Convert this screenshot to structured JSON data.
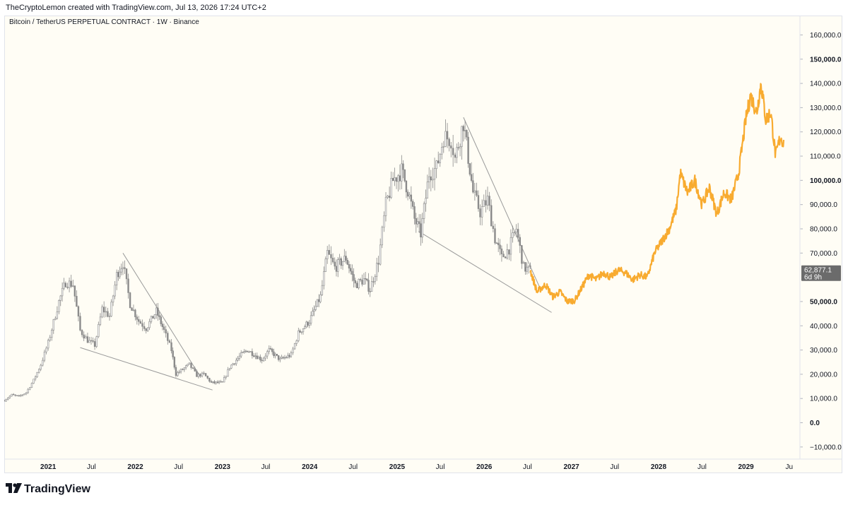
{
  "header": {
    "attribution": "TheCryptoLemon created with TradingView.com, Jul 13, 2026 17:24 UTC+2"
  },
  "symbol": {
    "line": "Bitcoin / TetherUS PERPETUAL CONTRACT · 1W · Binance"
  },
  "brand": {
    "name": "TradingView"
  },
  "colors": {
    "candle": "#8a8a8a",
    "projection": "#f7a21b",
    "trendline": "#9a9a9a",
    "price_label_bg": "#6b6b6b",
    "background": "#fffdf5"
  },
  "chart_data": {
    "type": "line",
    "y_axis": {
      "ticks": [
        {
          "value": 160000,
          "label": "160,000.0",
          "bold": false
        },
        {
          "value": 150000,
          "label": "150,000.0",
          "bold": true
        },
        {
          "value": 140000,
          "label": "140,000.0",
          "bold": false
        },
        {
          "value": 130000,
          "label": "130,000.0",
          "bold": false
        },
        {
          "value": 120000,
          "label": "120,000.0",
          "bold": false
        },
        {
          "value": 110000,
          "label": "110,000.0",
          "bold": false
        },
        {
          "value": 100000,
          "label": "100,000.0",
          "bold": true
        },
        {
          "value": 90000,
          "label": "90,000.0",
          "bold": false
        },
        {
          "value": 80000,
          "label": "80,000.0",
          "bold": false
        },
        {
          "value": 70000,
          "label": "70,000.0",
          "bold": false
        },
        {
          "value": 50000,
          "label": "50,000.0",
          "bold": true
        },
        {
          "value": 40000,
          "label": "40,000.0",
          "bold": false
        },
        {
          "value": 30000,
          "label": "30,000.0",
          "bold": false
        },
        {
          "value": 20000,
          "label": "20,000.0",
          "bold": false
        },
        {
          "value": 10000,
          "label": "10,000.0",
          "bold": false
        },
        {
          "value": 0,
          "label": "0.0",
          "bold": true
        },
        {
          "value": -10000,
          "label": "−10,000.0",
          "bold": false
        }
      ],
      "range": [
        -15000,
        168000
      ]
    },
    "x_axis": {
      "range": [
        "2020-07-01",
        "2029-08-15"
      ],
      "ticks": [
        {
          "date": "2021-01-01",
          "label": "2021",
          "bold": true
        },
        {
          "date": "2021-07-01",
          "label": "Jul",
          "bold": false
        },
        {
          "date": "2022-01-01",
          "label": "2022",
          "bold": true
        },
        {
          "date": "2022-07-01",
          "label": "Jul",
          "bold": false
        },
        {
          "date": "2023-01-01",
          "label": "2023",
          "bold": true
        },
        {
          "date": "2023-07-01",
          "label": "Jul",
          "bold": false
        },
        {
          "date": "2024-01-01",
          "label": "2024",
          "bold": true
        },
        {
          "date": "2024-07-01",
          "label": "Jul",
          "bold": false
        },
        {
          "date": "2025-01-01",
          "label": "2025",
          "bold": true
        },
        {
          "date": "2025-07-01",
          "label": "Jul",
          "bold": false
        },
        {
          "date": "2026-01-01",
          "label": "2026",
          "bold": true
        },
        {
          "date": "2026-07-01",
          "label": "Jul",
          "bold": false
        },
        {
          "date": "2027-01-01",
          "label": "2027",
          "bold": true
        },
        {
          "date": "2027-07-01",
          "label": "Jul",
          "bold": false
        },
        {
          "date": "2028-01-01",
          "label": "2028",
          "bold": true
        },
        {
          "date": "2028-07-01",
          "label": "Jul",
          "bold": false
        },
        {
          "date": "2029-01-01",
          "label": "2029",
          "bold": true
        },
        {
          "date": "2029-07-01",
          "label": "Ju",
          "bold": false
        }
      ]
    },
    "current_price": {
      "value": 62877.1,
      "label": "62,877.1",
      "countdown": "6d 9h"
    },
    "series": [
      {
        "style": "candles",
        "points": [
          [
            "2020-07-01",
            9200
          ],
          [
            "2020-08-01",
            11500
          ],
          [
            "2020-09-01",
            10800
          ],
          [
            "2020-10-01",
            12500
          ],
          [
            "2020-11-01",
            17500
          ],
          [
            "2020-12-01",
            24000
          ],
          [
            "2021-01-01",
            33000
          ],
          [
            "2021-02-15",
            50000
          ],
          [
            "2021-03-15",
            58000
          ],
          [
            "2021-04-15",
            57000
          ],
          [
            "2021-05-15",
            38000
          ],
          [
            "2021-06-15",
            34000
          ],
          [
            "2021-07-15",
            32000
          ],
          [
            "2021-08-15",
            47000
          ],
          [
            "2021-09-15",
            44000
          ],
          [
            "2021-10-15",
            61000
          ],
          [
            "2021-11-10",
            66000
          ],
          [
            "2021-12-10",
            49000
          ],
          [
            "2022-01-15",
            42000
          ],
          [
            "2022-02-15",
            39000
          ],
          [
            "2022-03-30",
            46000
          ],
          [
            "2022-05-01",
            38000
          ],
          [
            "2022-06-01",
            30000
          ],
          [
            "2022-06-20",
            20000
          ],
          [
            "2022-08-15",
            24000
          ],
          [
            "2022-09-15",
            19500
          ],
          [
            "2022-10-15",
            20000
          ],
          [
            "2022-11-15",
            16500
          ],
          [
            "2022-12-31",
            16500
          ],
          [
            "2023-01-31",
            23000
          ],
          [
            "2023-03-20",
            28000
          ],
          [
            "2023-04-15",
            30000
          ],
          [
            "2023-06-15",
            26000
          ],
          [
            "2023-07-15",
            30000
          ],
          [
            "2023-08-30",
            26000
          ],
          [
            "2023-10-15",
            28000
          ],
          [
            "2023-11-15",
            37000
          ],
          [
            "2023-12-31",
            42000
          ],
          [
            "2024-02-15",
            52000
          ],
          [
            "2024-03-15",
            70000
          ],
          [
            "2024-04-15",
            64000
          ],
          [
            "2024-06-01",
            68000
          ],
          [
            "2024-07-10",
            57000
          ],
          [
            "2024-08-15",
            59000
          ],
          [
            "2024-09-10",
            55000
          ],
          [
            "2024-10-15",
            67000
          ],
          [
            "2024-11-15",
            90000
          ],
          [
            "2024-12-15",
            100000
          ],
          [
            "2025-01-20",
            104000
          ],
          [
            "2025-02-15",
            96000
          ],
          [
            "2025-03-15",
            84000
          ],
          [
            "2025-04-10",
            78000
          ],
          [
            "2025-05-15",
            103000
          ],
          [
            "2025-06-15",
            105000
          ],
          [
            "2025-07-15",
            118000
          ],
          [
            "2025-08-15",
            117000
          ],
          [
            "2025-09-01",
            109000
          ],
          [
            "2025-10-06",
            124000
          ],
          [
            "2025-11-15",
            95000
          ],
          [
            "2025-12-15",
            87000
          ],
          [
            "2026-01-15",
            92000
          ],
          [
            "2026-02-15",
            76000
          ],
          [
            "2026-03-15",
            68000
          ],
          [
            "2026-04-15",
            72000
          ],
          [
            "2026-05-15",
            80000
          ],
          [
            "2026-06-15",
            64000
          ],
          [
            "2026-07-13",
            62877
          ]
        ]
      },
      {
        "style": "projection",
        "points": [
          [
            "2026-07-13",
            62877
          ],
          [
            "2026-08-10",
            54000
          ],
          [
            "2026-09-15",
            57000
          ],
          [
            "2026-10-15",
            52000
          ],
          [
            "2026-11-15",
            54000
          ],
          [
            "2026-12-15",
            50000
          ],
          [
            "2027-01-15",
            50500
          ],
          [
            "2027-02-15",
            56000
          ],
          [
            "2027-03-15",
            61000
          ],
          [
            "2027-04-15",
            59000
          ],
          [
            "2027-05-15",
            62000
          ],
          [
            "2027-06-15",
            60000
          ],
          [
            "2027-07-15",
            63000
          ],
          [
            "2027-08-15",
            62000
          ],
          [
            "2027-09-15",
            59000
          ],
          [
            "2027-10-15",
            61000
          ],
          [
            "2027-11-15",
            60000
          ],
          [
            "2027-12-15",
            70000
          ],
          [
            "2028-01-15",
            75000
          ],
          [
            "2028-02-15",
            80000
          ],
          [
            "2028-03-15",
            88000
          ],
          [
            "2028-04-01",
            103000
          ],
          [
            "2028-05-01",
            95000
          ],
          [
            "2028-06-01",
            100000
          ],
          [
            "2028-07-01",
            90000
          ],
          [
            "2028-08-01",
            97000
          ],
          [
            "2028-09-01",
            86000
          ],
          [
            "2028-10-01",
            95000
          ],
          [
            "2028-11-01",
            92000
          ],
          [
            "2028-12-01",
            103000
          ],
          [
            "2028-12-31",
            125000
          ],
          [
            "2029-01-20",
            135000
          ],
          [
            "2029-02-15",
            128000
          ],
          [
            "2029-03-05",
            140000
          ],
          [
            "2029-03-25",
            125000
          ],
          [
            "2029-04-15",
            128000
          ],
          [
            "2029-05-05",
            110000
          ],
          [
            "2029-05-25",
            118000
          ],
          [
            "2029-06-10",
            115000
          ]
        ]
      }
    ],
    "trendlines": [
      {
        "from": [
          "2021-05-15",
          31000
        ],
        "to": [
          "2022-11-20",
          13500
        ]
      },
      {
        "from": [
          "2021-11-10",
          70000
        ],
        "to": [
          "2022-09-30",
          19000
        ]
      },
      {
        "from": [
          "2025-04-01",
          79000
        ],
        "to": [
          "2026-10-10",
          45500
        ]
      },
      {
        "from": [
          "2025-10-06",
          126000
        ],
        "to": [
          "2026-08-25",
          55000
        ]
      }
    ]
  }
}
